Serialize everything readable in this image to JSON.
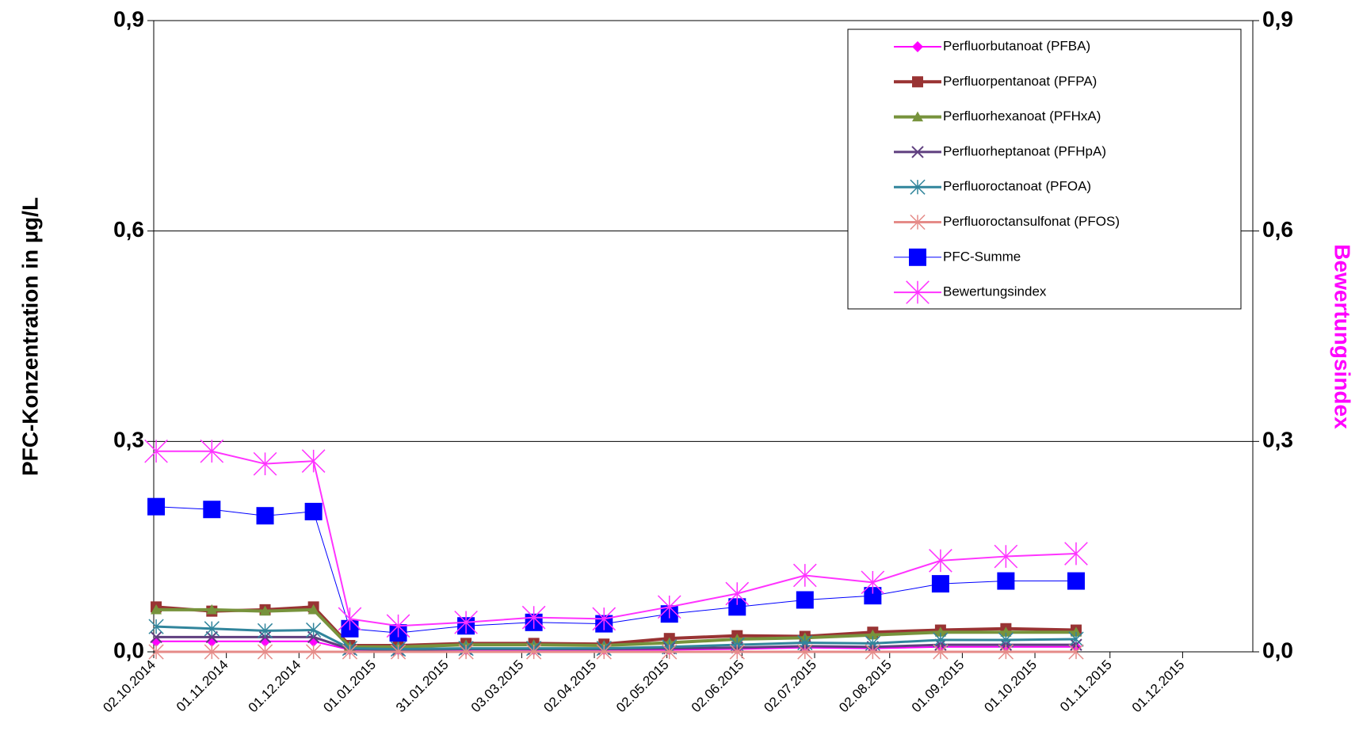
{
  "chart_data": {
    "type": "line",
    "y_label": "PFC-Konzentration in µg/L",
    "y2_label": "Bewertungsindex",
    "y2_label_color": "#ff00ff",
    "x": [
      "03.10.2014",
      "26.10.2014",
      "17.11.2014",
      "07.12.2014",
      "22.12.2014",
      "11.01.2015",
      "08.02.2015",
      "08.03.2015",
      "06.04.2015",
      "03.05.2015",
      "31.05.2015",
      "28.06.2015",
      "26.07.2015",
      "23.08.2015",
      "19.09.2015",
      "18.10.2015"
    ],
    "xlim": [
      "02.10.2014",
      "30.12.2015"
    ],
    "xticks": [
      "02.10.2014",
      "01.11.2014",
      "01.12.2014",
      "01.01.2015",
      "31.01.2015",
      "03.03.2015",
      "02.04.2015",
      "02.05.2015",
      "02.06.2015",
      "02.07.2015",
      "02.08.2015",
      "01.09.2015",
      "01.10.2015",
      "01.11.2015",
      "01.12.2015"
    ],
    "ylim": [
      0,
      0.9
    ],
    "yticks": [
      {
        "value": 0,
        "label": "0,0"
      },
      {
        "value": 0.3,
        "label": "0,3"
      },
      {
        "value": 0.6,
        "label": "0,6"
      },
      {
        "value": 0.9,
        "label": "0,9"
      }
    ],
    "y2lim": [
      0,
      0.9
    ],
    "y2ticks": [
      {
        "value": 0,
        "label": "0,0"
      },
      {
        "value": 0.3,
        "label": "0,3"
      },
      {
        "value": 0.6,
        "label": "0,6"
      },
      {
        "value": 0.9,
        "label": "0,9"
      }
    ],
    "grid": true,
    "legend": "top-right",
    "series": [
      {
        "name": "Perfluorbutanoat (PFBA)",
        "color": "#ff00ff",
        "marker": "diamond",
        "width": 2,
        "values": [
          0.015,
          0.015,
          0.015,
          0.015,
          0.003,
          0.003,
          0.003,
          0.003,
          0.003,
          0.003,
          0.004,
          0.006,
          0.005,
          0.007,
          0.007,
          0.007
        ]
      },
      {
        "name": "Perfluorpentanoat (PFPA)",
        "color": "#993333",
        "marker": "square",
        "width": 4,
        "values": [
          0.064,
          0.058,
          0.06,
          0.064,
          0.009,
          0.009,
          0.012,
          0.012,
          0.011,
          0.019,
          0.023,
          0.022,
          0.028,
          0.031,
          0.033,
          0.031
        ]
      },
      {
        "name": "Perfluorhexanoat (PFHxA)",
        "color": "#77933c",
        "marker": "triangle",
        "width": 4,
        "values": [
          0.06,
          0.06,
          0.058,
          0.06,
          0.007,
          0.007,
          0.01,
          0.01,
          0.009,
          0.013,
          0.018,
          0.02,
          0.024,
          0.028,
          0.028,
          0.028
        ]
      },
      {
        "name": "Perfluorheptanoat (PFHpA)",
        "color": "#5f3f7f",
        "marker": "x",
        "width": 3,
        "values": [
          0.021,
          0.021,
          0.021,
          0.021,
          0.004,
          0.003,
          0.004,
          0.004,
          0.004,
          0.005,
          0.006,
          0.008,
          0.007,
          0.01,
          0.01,
          0.01
        ]
      },
      {
        "name": "Perfluoroctanoat (PFOA)",
        "color": "#31859c",
        "marker": "star",
        "width": 3,
        "values": [
          0.036,
          0.033,
          0.03,
          0.031,
          0.005,
          0.004,
          0.005,
          0.005,
          0.005,
          0.007,
          0.01,
          0.013,
          0.012,
          0.017,
          0.017,
          0.018
        ]
      },
      {
        "name": "Perfluoroctansulfonat (PFOS)",
        "color": "#e58b88",
        "marker": "star",
        "width": 3,
        "values": [
          0,
          0,
          0,
          0,
          0,
          0,
          0,
          0,
          0,
          0,
          0,
          0,
          0,
          0,
          0,
          0
        ]
      },
      {
        "name": "PFC-Summe",
        "color": "#0000ff",
        "marker": "bigsquare",
        "width": 1,
        "values": [
          0.207,
          0.203,
          0.194,
          0.2,
          0.033,
          0.027,
          0.037,
          0.042,
          0.04,
          0.054,
          0.064,
          0.074,
          0.08,
          0.097,
          0.101,
          0.101
        ]
      },
      {
        "name": "Bewertungsindex",
        "color": "#ff33ff",
        "marker": "bigstar",
        "width": 2,
        "axis": "y2",
        "values": [
          0.286,
          0.286,
          0.268,
          0.272,
          0.047,
          0.037,
          0.042,
          0.049,
          0.047,
          0.064,
          0.083,
          0.109,
          0.099,
          0.13,
          0.136,
          0.14
        ]
      }
    ]
  }
}
